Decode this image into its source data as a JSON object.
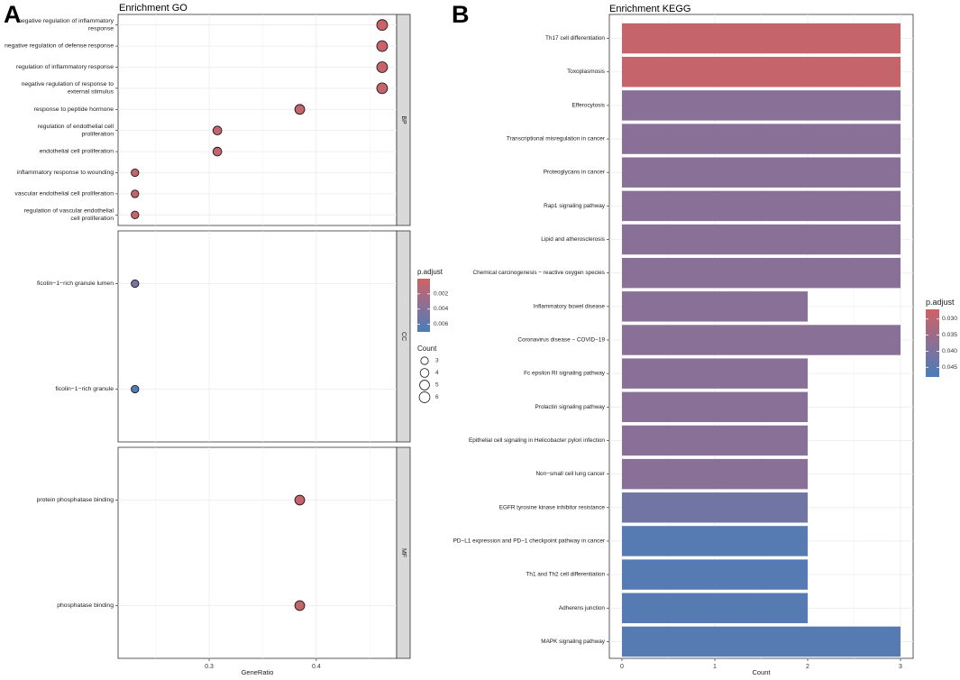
{
  "panel_labels": {
    "a": "A",
    "b": "B"
  },
  "colors": {
    "high": "#cf6264",
    "low": "#4a7db8",
    "grid": "#ebebeb",
    "strip": "#d9d9d9"
  },
  "chart_data": [
    {
      "type": "scatter",
      "title": "Enrichment GO",
      "xlabel": "GeneRatio",
      "ylabel": "",
      "xlim": [
        0.215,
        0.475
      ],
      "x_ticks": [
        0.3,
        0.4
      ],
      "x_tick_labels": [
        "0.3",
        "0.4"
      ],
      "size_legend": {
        "title": "Count",
        "values": [
          3,
          4,
          5,
          6
        ]
      },
      "color_legend": {
        "title": "p.adjust",
        "ticks": [
          0.002,
          0.004,
          0.006
        ],
        "tick_labels": [
          "0.002",
          "0.004",
          "0.006"
        ],
        "range": [
          0.0,
          0.007
        ]
      },
      "facets": [
        {
          "name": "BP",
          "points": [
            {
              "term": [
                "negative regulation of inflammatory",
                "response"
              ],
              "x": 0.4615,
              "count": 6,
              "p_adjust": 0.0003
            },
            {
              "term": [
                "negative regulation of defense response"
              ],
              "x": 0.4615,
              "count": 6,
              "p_adjust": 0.0003
            },
            {
              "term": [
                "regulation of inflammatory response"
              ],
              "x": 0.4615,
              "count": 6,
              "p_adjust": 0.0003
            },
            {
              "term": [
                "negative regulation of response to",
                "external stimulus"
              ],
              "x": 0.4615,
              "count": 6,
              "p_adjust": 0.0005
            },
            {
              "term": [
                "response to peptide hormone"
              ],
              "x": 0.3846,
              "count": 5,
              "p_adjust": 0.0005
            },
            {
              "term": [
                "regulation of endothelial cell",
                "proliferation"
              ],
              "x": 0.3077,
              "count": 4,
              "p_adjust": 0.0005
            },
            {
              "term": [
                "endothelial cell proliferation"
              ],
              "x": 0.3077,
              "count": 4,
              "p_adjust": 0.0006
            },
            {
              "term": [
                "inflammatory response to wounding"
              ],
              "x": 0.2308,
              "count": 3,
              "p_adjust": 0.0005
            },
            {
              "term": [
                "vascular endothelial cell proliferation"
              ],
              "x": 0.2308,
              "count": 3,
              "p_adjust": 0.0006
            },
            {
              "term": [
                "regulation of vascular endothelial",
                "cell proliferation"
              ],
              "x": 0.2308,
              "count": 3,
              "p_adjust": 0.0006
            }
          ]
        },
        {
          "name": "CC",
          "points": [
            {
              "term": [
                "ficolin−1−rich granule lumen"
              ],
              "x": 0.2308,
              "count": 3,
              "p_adjust": 0.0045
            },
            {
              "term": [
                "ficolin−1−rich granule"
              ],
              "x": 0.2308,
              "count": 3,
              "p_adjust": 0.0068
            }
          ]
        },
        {
          "name": "MF",
          "points": [
            {
              "term": [
                "protein phosphatase binding"
              ],
              "x": 0.3846,
              "count": 5,
              "p_adjust": 0.0004
            },
            {
              "term": [
                "phosphatase binding"
              ],
              "x": 0.3846,
              "count": 5,
              "p_adjust": 0.0005
            }
          ]
        }
      ]
    },
    {
      "type": "bar",
      "orientation": "horizontal",
      "title": "Enrichment KEGG",
      "xlabel": "Count",
      "ylabel": "",
      "xlim": [
        0,
        3
      ],
      "x_ticks": [
        0,
        1,
        2,
        3
      ],
      "x_tick_labels": [
        "0",
        "1",
        "2",
        "3"
      ],
      "color_legend": {
        "title": "p.adjust",
        "ticks": [
          0.03,
          0.035,
          0.04,
          0.045
        ],
        "tick_labels": [
          "0.030",
          "0.035",
          "0.040",
          "0.045"
        ],
        "range": [
          0.027,
          0.048
        ]
      },
      "categories": [
        "Th17 cell differentiation",
        "Toxoplasmosis",
        "Efferocytosis",
        "Transcriptional misregulation in cancer",
        "Proteoglycans in cancer",
        "Rap1 signaling pathway",
        "Lipid and atherosclerosis",
        "Chemical carcinogenesis − reactive oxygen species",
        "Inflammatory bowel disease",
        "Coronavirus disease − COVID−19",
        "Fc epsilon RI signaling pathway",
        "Prolactin signaling pathway",
        "Epithelial cell signaling in Helicobacter pylori infection",
        "Non−small cell lung cancer",
        "EGFR tyrosine kinase inhibitor resistance",
        "PD−L1 expression and PD−1 checkpoint pathway in cancer",
        "Th1 and Th2 cell differentiation",
        "Adherens junction",
        "MAPK signaling pathway"
      ],
      "values": [
        3,
        3,
        3,
        3,
        3,
        3,
        3,
        3,
        2,
        3,
        2,
        2,
        2,
        2,
        2,
        2,
        2,
        2,
        3
      ],
      "p_adjust": [
        0.0285,
        0.0285,
        0.038,
        0.038,
        0.038,
        0.038,
        0.038,
        0.038,
        0.038,
        0.038,
        0.038,
        0.038,
        0.038,
        0.038,
        0.042,
        0.0462,
        0.0462,
        0.0462,
        0.0462
      ]
    }
  ]
}
